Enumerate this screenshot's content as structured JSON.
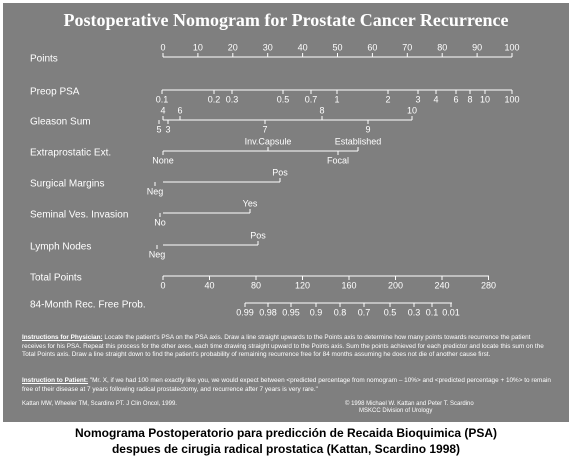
{
  "title": "Postoperative Nomogram for Prostate Cancer Recurrence",
  "rows": [
    {
      "label": "Points",
      "above": [
        "0",
        "10",
        "20",
        "30",
        "40",
        "50",
        "60",
        "70",
        "80",
        "90",
        "100"
      ],
      "below": []
    },
    {
      "label": "Preop PSA",
      "above": [],
      "below": [
        "0.1",
        "0.2",
        "0.3",
        "0.5",
        "0.7",
        "1",
        "2",
        "3",
        "4",
        "6",
        "8",
        "10",
        "100"
      ]
    },
    {
      "label": "Gleason Sum",
      "above": [
        "4",
        "6",
        "8",
        "10"
      ],
      "below": [
        "5",
        "3",
        "7",
        "9"
      ]
    },
    {
      "label": "Extraprostatic Ext.",
      "above": [
        "Inv.Capsule",
        "Established"
      ],
      "below": [
        "None",
        "Focal"
      ]
    },
    {
      "label": "Surgical Margins",
      "above": [
        "Pos"
      ],
      "below": [
        "Neg"
      ]
    },
    {
      "label": "Seminal Ves. Invasion",
      "above": [
        "Yes"
      ],
      "below": [
        "No"
      ]
    },
    {
      "label": "Lymph Nodes",
      "above": [
        "Pos"
      ],
      "below": [
        "Neg"
      ]
    },
    {
      "label": "Total Points",
      "above": [],
      "below": [
        "0",
        "40",
        "80",
        "120",
        "160",
        "200",
        "240",
        "280"
      ]
    },
    {
      "label": "84-Month Rec. Free Prob.",
      "above": [],
      "below": [
        "0.99",
        "0.98",
        "0.95",
        "0.9",
        "0.8",
        "0.7",
        "0.5",
        "0.3",
        "0.1",
        "0.01"
      ]
    }
  ],
  "instructions": [
    {
      "lead": "Instructions for Physician:",
      "text": " Locate the patient's PSA on the PSA axis. Draw a line straight upwards to the Points axis to determine how many points towards recurrence the patient receives for his PSA. Repeat this process for the other axes, each time drawing straight upward to the Points axis. Sum the points achieved for each predictor and locate this sum on the Total Points axis. Draw a line straight down to find the patient's probability of remaining recurrence free for 84 months assuming he does not die of another cause first."
    },
    {
      "lead": "Instruction to Patient:",
      "text": " \"Mr. X, if we had 100 men exactly like you, we would expect between <predicted percentage from nomogram – 10%> and <predicted percentage + 10%> to remain free of their disease at 7 years following radical prostatectomy, and recurrence after 7 years is very rare.\""
    }
  ],
  "footer": {
    "citation": "Kattan MW, Wheeler TM, Scardino PT. J Clin Oncol, 1999.",
    "copyright": [
      "© 1998 Michael W. Kattan and Peter T. Scardino",
      "MSKCC Division of Urology"
    ]
  },
  "caption": [
    "Nomograma Postoperatorio para predicción de Recaida Bioquimica (PSA)",
    "despues de cirugia radical prostatica (Kattan, Scardino 1998)"
  ]
}
